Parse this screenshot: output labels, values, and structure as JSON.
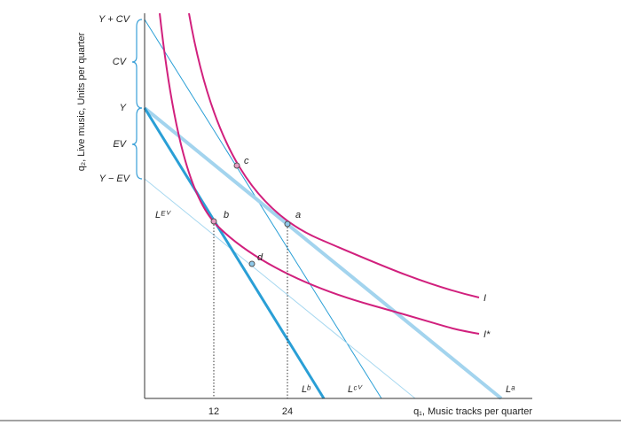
{
  "axes": {
    "y_label": "q₂, Live music, Units per quarter",
    "x_label": "q₁, Music tracks per quarter",
    "x_ticks": [
      "12",
      "24"
    ]
  },
  "y_levels": [
    "Y + CV",
    "CV",
    "Y",
    "EV",
    "Y − EV"
  ],
  "points": [
    "a",
    "b",
    "c",
    "d"
  ],
  "budget_lines": [
    "Lᵇ",
    "Lᶜⱽ",
    "Lᵃ",
    "Lᴱⱽ"
  ],
  "curves": [
    "I",
    "I*"
  ]
}
